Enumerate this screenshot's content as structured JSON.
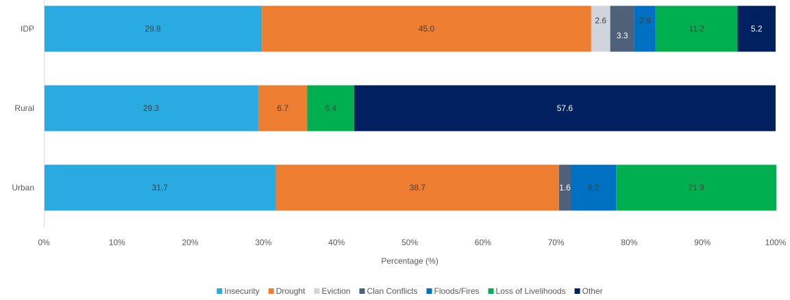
{
  "chart_data": {
    "type": "bar",
    "orientation": "horizontal",
    "stacked": true,
    "categories": [
      "IDP",
      "Rural",
      "Urban"
    ],
    "series": [
      {
        "name": "Insecurity",
        "color": "#29abe2",
        "label_color": "#404040",
        "values": [
          29.8,
          29.3,
          31.7
        ]
      },
      {
        "name": "Drought",
        "color": "#ed7d31",
        "label_color": "#404040",
        "values": [
          45.0,
          6.7,
          38.7
        ]
      },
      {
        "name": "Eviction",
        "color": "#d0d5dd",
        "label_color": "#404040",
        "values": [
          2.6,
          0,
          0
        ]
      },
      {
        "name": "Clan Conflicts",
        "color": "#4f6079",
        "label_color": "#ffffff",
        "values": [
          3.3,
          0,
          1.6
        ]
      },
      {
        "name": "Floods/Fires",
        "color": "#0070c0",
        "label_color": "#404040",
        "values": [
          2.9,
          0,
          6.2
        ]
      },
      {
        "name": "Loss of Livelihoods",
        "color": "#00b050",
        "label_color": "#404040",
        "values": [
          11.2,
          6.4,
          21.9
        ]
      },
      {
        "name": "Other",
        "color": "#002060",
        "label_color": "#ffffff",
        "values": [
          5.2,
          57.6,
          0
        ]
      }
    ],
    "data_labels": [
      [
        "29.8",
        "29.3",
        "31.7"
      ],
      [
        "45.0",
        "6.7",
        "38.7"
      ],
      [
        "2.6",
        "",
        ""
      ],
      [
        "3.3",
        "",
        "1.6"
      ],
      [
        "2.9",
        "",
        "6.2"
      ],
      [
        "11.2",
        "6.4",
        "21.9"
      ],
      [
        "5.2",
        "57.6",
        ""
      ]
    ],
    "xlabel": "Percentage (%)",
    "ylabel": "",
    "xlim": [
      0,
      100
    ],
    "xticks": [
      "0%",
      "10%",
      "20%",
      "30%",
      "40%",
      "50%",
      "60%",
      "70%",
      "80%",
      "90%",
      "100%"
    ],
    "grid": false,
    "legend": "bottom"
  }
}
